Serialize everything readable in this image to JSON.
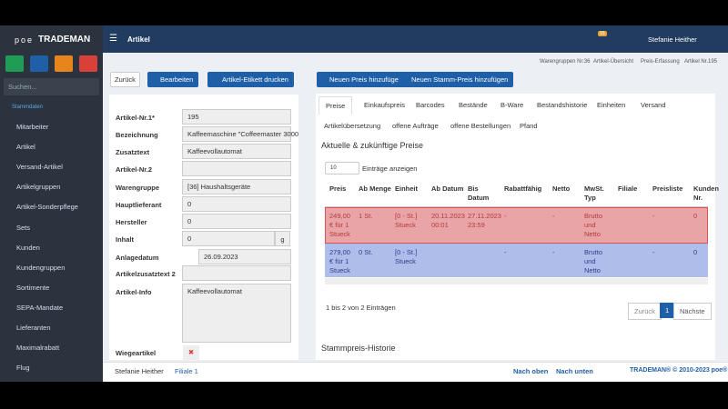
{
  "header": {
    "logo_prefix": "poe",
    "logo": "TRADEMAN",
    "page_title": "Artikel",
    "notification_count": "15",
    "user": "Stefanie Heither"
  },
  "sidebar": {
    "search_placeholder": "Suchen...",
    "section": "Stammdaten",
    "items": [
      "Mitarbeiter",
      "Artikel",
      "Versand-Artikel",
      "Artikelgruppen",
      "Artikel-Sonderpflege",
      "Sets",
      "Kunden",
      "Kundengruppen",
      "Sortimente",
      "SEPA-Mandate",
      "Lieferanten",
      "Maximalrabatt",
      "Flug"
    ]
  },
  "breadcrumb": [
    "Warengruppen Nr.36",
    "Artikel-Übersicht",
    "Preis-Erfassung",
    "Artikel Nr.195"
  ],
  "toolbar": {
    "back": "Zurück",
    "edit": "Bearbeiten",
    "print_label": "Artikel-Etikett drucken",
    "add_price": "Neuen Preis hinzufügen",
    "add_master_price": "Neuen Stamm-Preis hinzufügen"
  },
  "form": {
    "fields": [
      {
        "label": "Artikel-Nr.1*",
        "value": "195"
      },
      {
        "label": "Bezeichnung",
        "value": "Kaffeemaschine \"Coffeemaster 3000"
      },
      {
        "label": "Zusatztext",
        "value": "Kaffeevollautomat"
      },
      {
        "label": "Artikel-Nr.2"
      },
      {
        "label": "Warengruppe",
        "value": "[36] Haushaltsgeräte"
      },
      {
        "label": "Hauptlieferant",
        "value": "0"
      },
      {
        "label": "Hersteller",
        "value": "0"
      },
      {
        "label": "Inhalt",
        "value": "0",
        "unit": "g"
      },
      {
        "label": "Anlagedatum",
        "value": "26.09.2023"
      },
      {
        "label": "Artikelzusatztext 2"
      },
      {
        "label": "Artikel-Info",
        "value": "Kaffeevollautomat"
      },
      {
        "label": "Wiegeartikel"
      }
    ]
  },
  "tabs": {
    "row1": [
      "Preise",
      "Einkaufspreis",
      "Barcodes",
      "Bestände",
      "B-Ware",
      "Bestandshistorie",
      "Einheiten",
      "Versand"
    ],
    "row2": [
      "Artikelübersetzung",
      "offene Aufträge",
      "offene Bestellungen",
      "Pfand"
    ]
  },
  "prices": {
    "title": "Aktuelle & zukünftige Preise",
    "page_size": "10",
    "page_size_label": "Einträge anzeigen",
    "table": {
      "columns": [
        "Preis",
        "Ab Menge",
        "Einheit",
        "Ab Datum",
        "Bis Datum",
        "Rabattfähig",
        "Netto",
        "MwSt. Typ",
        "Filiale",
        "Preisliste",
        "Kunden Nr."
      ],
      "rows": [
        [
          "249,00 € für 1 Stueck",
          "1 St.",
          "[0 - St.] Stueck",
          "20.11.2023 00:01",
          "27.11.2023 23:59",
          "-",
          "-",
          "Brutto und Netto",
          null,
          "-",
          "0"
        ],
        [
          "279,00 € für 1 Stueck",
          "0 St.",
          "[0 - St.] Stueck",
          null,
          null,
          "-",
          "-",
          "Brutto und Netto",
          null,
          "-",
          "0"
        ]
      ]
    },
    "info": "1 bis 2 von 2 Einträgen",
    "pagination": {
      "prev": "Zurück",
      "page": "1",
      "next": "Nächste"
    }
  },
  "history_title": "Stammpreis-Historie",
  "footer": {
    "user": "Stefanie Heither",
    "branch": "Filiale 1",
    "up": "Nach oben",
    "down": "Nach unten",
    "copyright": "TRADEMAN® © 2010-2023 poe®"
  }
}
